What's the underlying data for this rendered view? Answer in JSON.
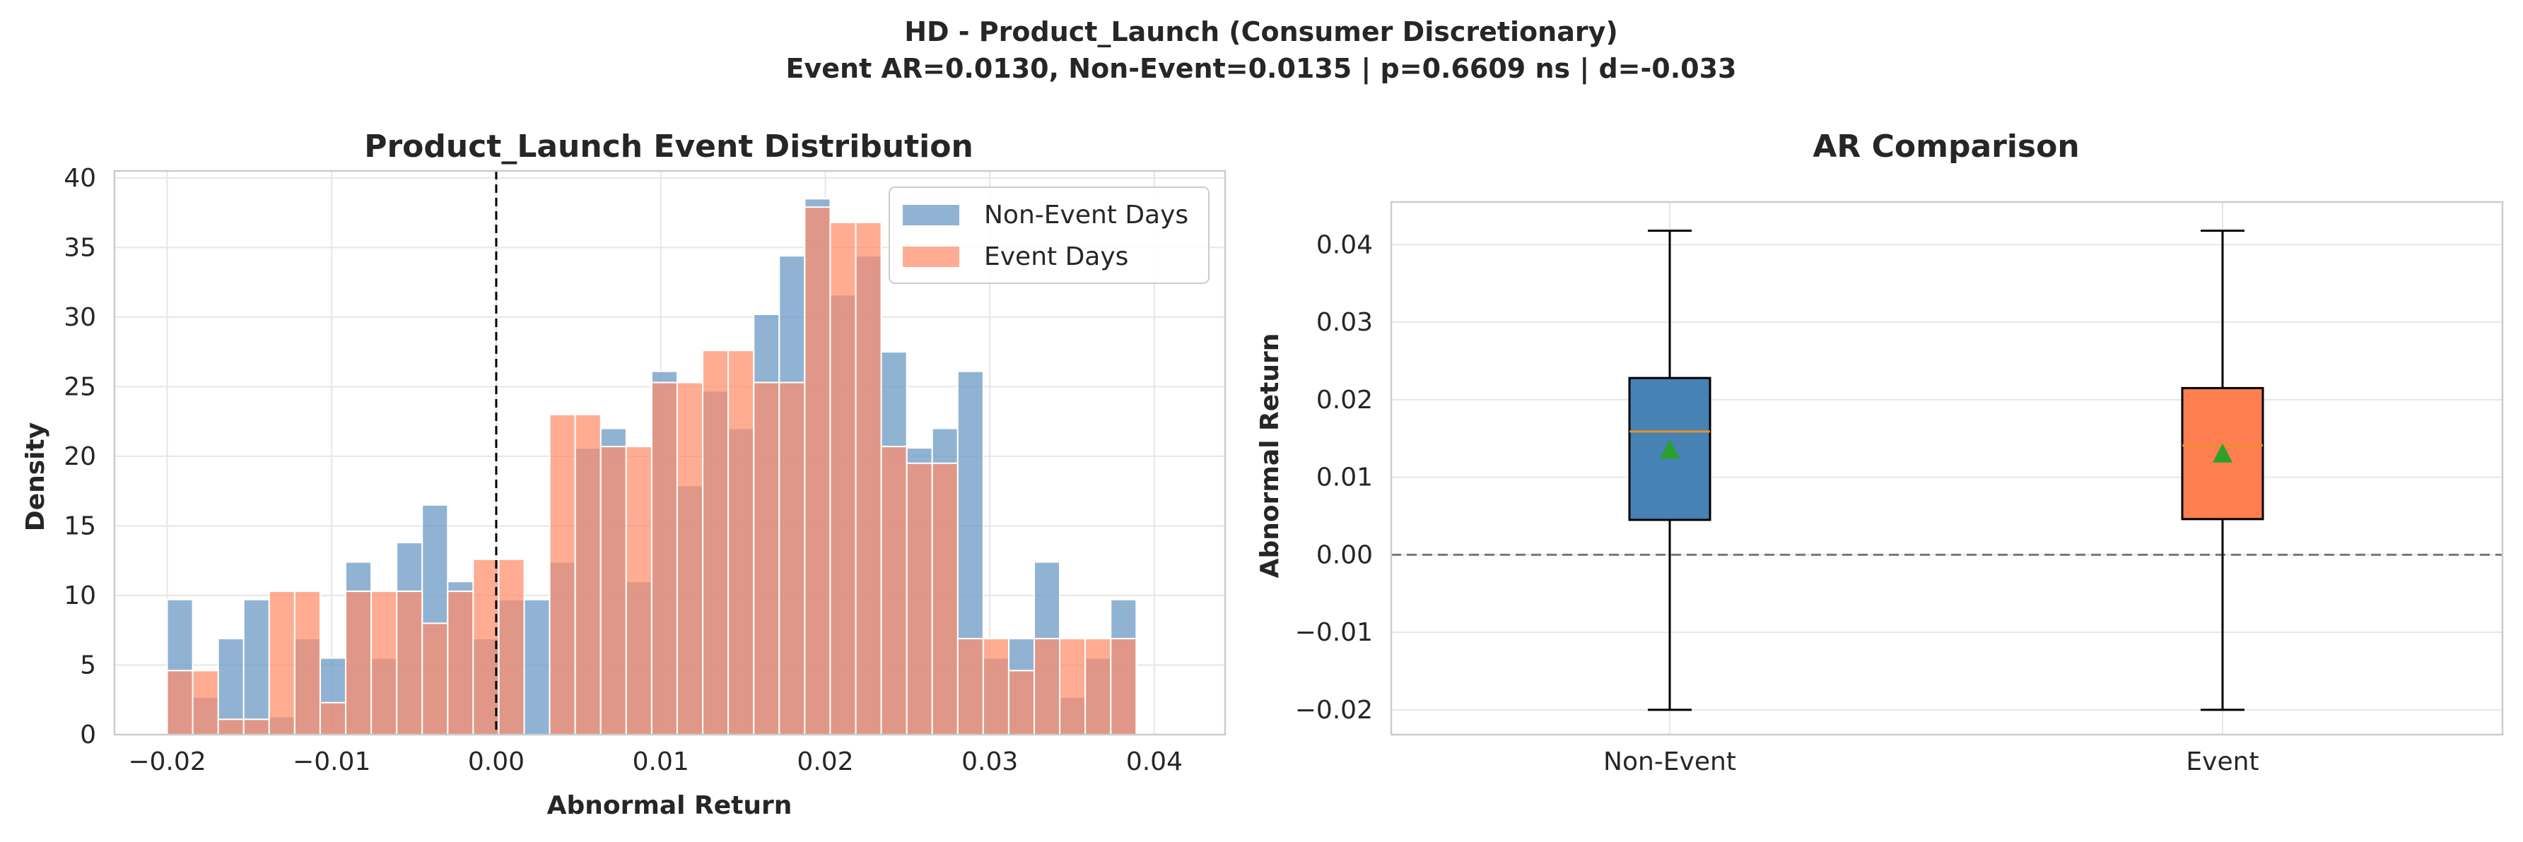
{
  "suptitle": {
    "line1": "HD - Product_Launch (Consumer Discretionary)",
    "line2": "Event AR=0.0130, Non-Event=0.0135 | p=0.6609 ns | d=-0.033"
  },
  "colors": {
    "non_event": "#6b9ac4",
    "event": "#ff8c69",
    "box_non_event": "#4682b4",
    "box_event": "#ff7f50",
    "median": "#e8902a",
    "mean_marker": "#2ca02c",
    "grid": "#e6e6e6",
    "spine": "#cccccc"
  },
  "chart_data": [
    {
      "type": "histogram",
      "title": "Product_Launch Event Distribution",
      "xlabel": "Abnormal Return",
      "ylabel": "Density",
      "xlim": [
        -0.0232,
        0.0443
      ],
      "ylim": [
        0,
        40.5
      ],
      "xticks": [
        -0.02,
        -0.01,
        0.0,
        0.01,
        0.02,
        0.03,
        0.04
      ],
      "xtick_labels": [
        "−0.02",
        "−0.01",
        "0.00",
        "0.01",
        "0.02",
        "0.03",
        "0.04"
      ],
      "yticks": [
        0,
        5,
        10,
        15,
        20,
        25,
        30,
        35,
        40
      ],
      "ytick_labels": [
        "0",
        "5",
        "10",
        "15",
        "20",
        "25",
        "30",
        "35",
        "40"
      ],
      "grid": true,
      "legend_position": "top-right",
      "reference_line": {
        "x": 0.0,
        "style": "dashed"
      },
      "bin_start": -0.02,
      "bin_width": 0.00155,
      "series": [
        {
          "name": "Non-Event Days",
          "values": [
            9.7,
            2.7,
            6.9,
            9.7,
            1.3,
            6.9,
            5.5,
            12.4,
            5.5,
            13.8,
            16.5,
            11.0,
            6.9,
            9.7,
            9.7,
            12.4,
            20.6,
            22.0,
            11.0,
            26.1,
            17.9,
            24.7,
            22.0,
            30.2,
            34.4,
            38.5,
            31.6,
            34.4,
            27.5,
            20.6,
            22.0,
            26.1,
            5.5,
            6.9,
            12.4,
            2.7,
            5.5,
            9.7
          ]
        },
        {
          "name": "Event Days",
          "values": [
            4.6,
            4.6,
            1.1,
            1.1,
            10.3,
            10.3,
            2.3,
            10.3,
            10.3,
            10.3,
            8.0,
            10.3,
            12.6,
            12.6,
            0,
            23.0,
            23.0,
            20.7,
            20.7,
            25.3,
            25.3,
            27.6,
            27.6,
            25.3,
            25.3,
            37.9,
            36.8,
            36.8,
            20.7,
            19.5,
            19.5,
            6.9,
            6.9,
            4.6,
            6.9,
            6.9,
            6.9,
            6.9
          ]
        }
      ]
    },
    {
      "type": "box",
      "title": "AR Comparison",
      "xlabel": "",
      "ylabel": "Abnormal Return",
      "categories": [
        "Non-Event",
        "Event"
      ],
      "ylim": [
        -0.0232,
        0.0455
      ],
      "yticks": [
        -0.02,
        -0.01,
        0.0,
        0.01,
        0.02,
        0.03,
        0.04
      ],
      "ytick_labels": [
        "−0.02",
        "−0.01",
        "0.00",
        "0.01",
        "0.02",
        "0.03",
        "0.04"
      ],
      "grid": true,
      "reference_line": {
        "y": 0.0,
        "style": "dashed"
      },
      "boxes": [
        {
          "name": "Non-Event",
          "whisker_low": -0.02,
          "q1": 0.0045,
          "median": 0.0159,
          "q3": 0.0228,
          "whisker_high": 0.0418,
          "mean": 0.0135
        },
        {
          "name": "Event",
          "whisker_low": -0.02,
          "q1": 0.0046,
          "median": 0.0141,
          "q3": 0.0215,
          "whisker_high": 0.0418,
          "mean": 0.013
        }
      ]
    }
  ]
}
